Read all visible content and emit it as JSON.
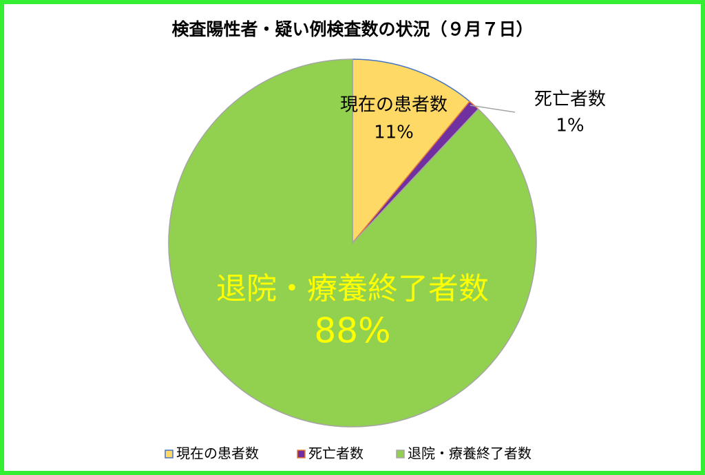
{
  "chart_data": {
    "type": "pie",
    "title": "検査陽性者・疑い例検査数の状況（９月７日）",
    "categories": [
      "現在の患者数",
      "死亡者数",
      "退院・療養終了者数"
    ],
    "values": [
      11,
      1,
      88
    ],
    "value_labels": [
      "11%",
      "1%",
      "88%"
    ],
    "colors": [
      "#ffd966",
      "#7030a0",
      "#92d050"
    ],
    "edgecolors": [
      "#4472c4",
      "#ed7d31",
      "#a5a5a5"
    ],
    "legend": "bottom"
  }
}
